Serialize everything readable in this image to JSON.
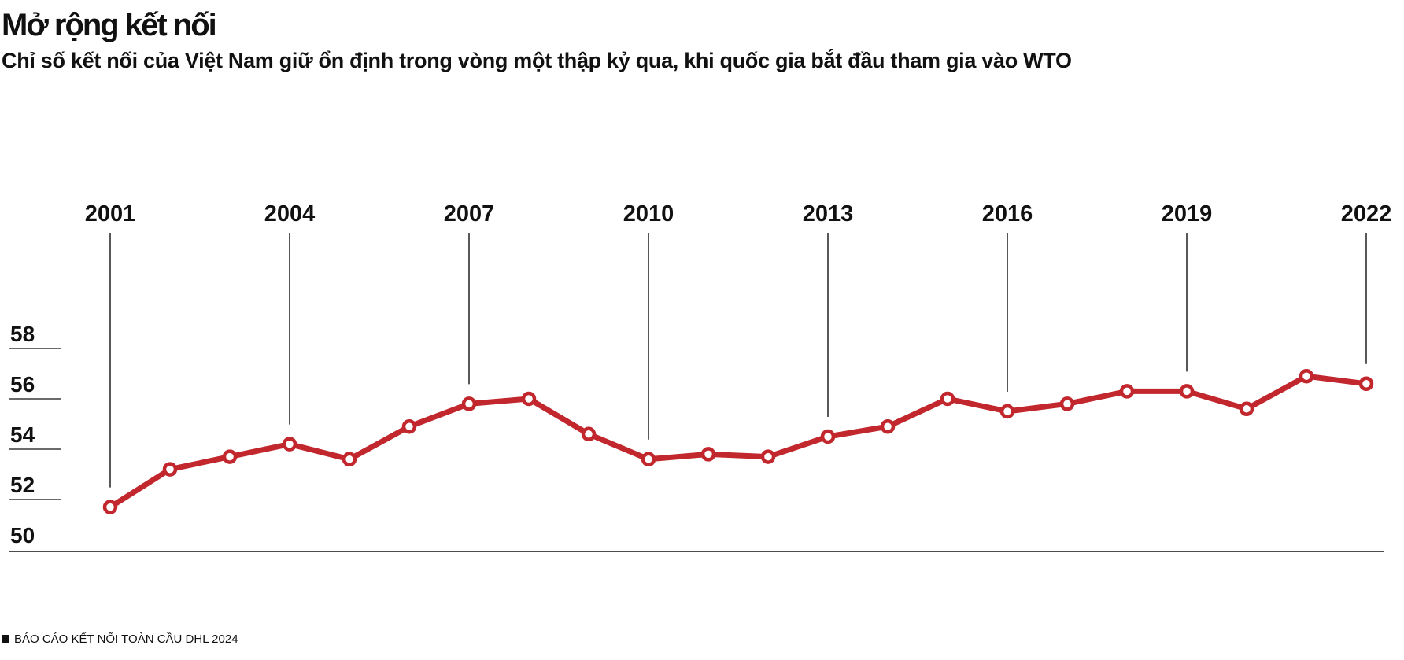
{
  "title": "Mở rộng kết nối",
  "subtitle": "Chỉ số kết nối của Việt Nam giữ ổn định trong vòng một thập kỷ qua, khi quốc gia bắt đầu tham gia vào WTO",
  "source": "BÁO CÁO KẾT NỐI TOÀN CẦU DHL 2024",
  "colors": {
    "line": "#c1272d",
    "text": "#111111"
  },
  "chart_data": {
    "type": "line",
    "title": "Mở rộng kết nối",
    "xlabel": "",
    "ylabel": "",
    "x": [
      2001,
      2002,
      2003,
      2004,
      2005,
      2006,
      2007,
      2008,
      2009,
      2010,
      2011,
      2012,
      2013,
      2014,
      2015,
      2016,
      2017,
      2018,
      2019,
      2020,
      2021,
      2022
    ],
    "series": [
      {
        "values": [
          51.7,
          53.2,
          53.7,
          54.2,
          53.6,
          54.9,
          55.8,
          56.0,
          54.6,
          53.6,
          53.8,
          53.7,
          54.5,
          54.9,
          56.0,
          55.5,
          55.8,
          56.3,
          56.3,
          55.6,
          56.9,
          56.6
        ]
      }
    ],
    "ylim": [
      50,
      58
    ],
    "yticks": [
      "50",
      "52",
      "54",
      "56",
      "58"
    ],
    "xticks": [
      "2001",
      "2004",
      "2007",
      "2010",
      "2013",
      "2016",
      "2019",
      "2022"
    ],
    "grid": false,
    "legend": "none"
  }
}
